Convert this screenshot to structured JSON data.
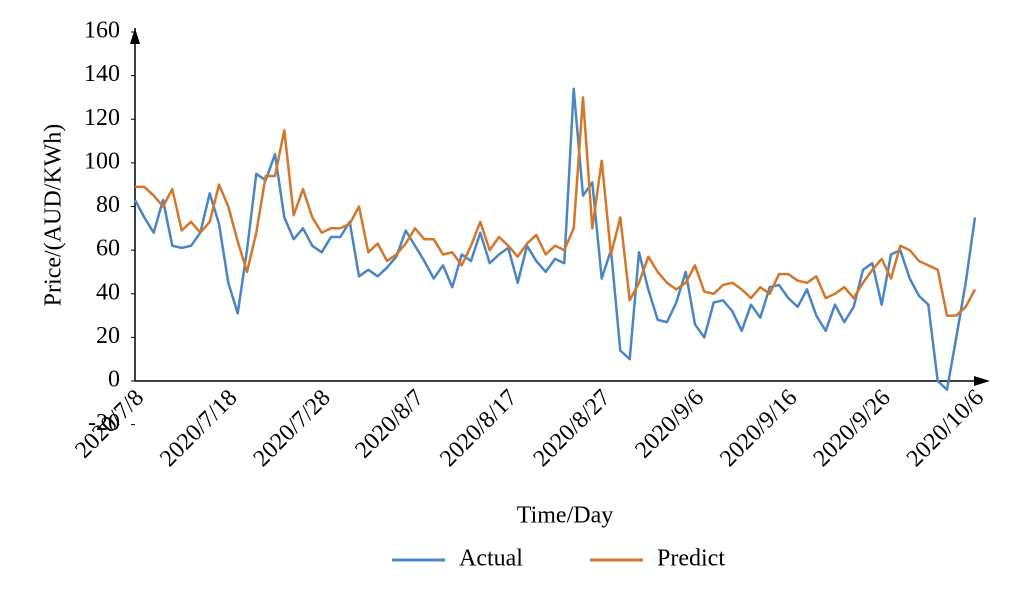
{
  "chart_data": {
    "type": "line",
    "x_label": "Time/Day",
    "y_label": "Price/(AUD/KWh)",
    "categories": [
      "2020/7/8",
      null,
      null,
      null,
      null,
      null,
      null,
      null,
      null,
      null,
      "2020/7/18",
      null,
      null,
      null,
      null,
      null,
      null,
      null,
      null,
      null,
      "2020/7/28",
      null,
      null,
      null,
      null,
      null,
      null,
      null,
      null,
      null,
      "2020/8/7",
      null,
      null,
      null,
      null,
      null,
      null,
      null,
      null,
      null,
      "2020/8/17",
      null,
      null,
      null,
      null,
      null,
      null,
      null,
      null,
      null,
      "2020/8/27",
      null,
      null,
      null,
      null,
      null,
      null,
      null,
      null,
      null,
      "2020/9/6",
      null,
      null,
      null,
      null,
      null,
      null,
      null,
      null,
      null,
      "2020/9/16",
      null,
      null,
      null,
      null,
      null,
      null,
      null,
      null,
      null,
      "2020/9/26",
      null,
      null,
      null,
      null,
      null,
      null,
      null,
      null,
      null,
      "2020/10/6"
    ],
    "series": [
      {
        "name": "Actual",
        "color": "#4a86c5",
        "values": [
          83,
          75,
          68,
          83,
          62,
          61,
          62,
          68,
          86,
          72,
          45,
          31,
          60,
          95,
          92,
          104,
          75,
          65,
          70,
          62,
          59,
          66,
          66,
          73,
          48,
          51,
          48,
          52,
          57,
          69,
          62,
          55,
          47,
          53,
          43,
          58,
          55,
          68,
          54,
          58,
          61,
          45,
          62,
          55,
          50,
          56,
          54,
          134,
          85,
          91,
          47,
          60,
          14,
          10,
          59,
          42,
          28,
          27,
          36,
          50,
          26,
          20,
          36,
          37,
          32,
          23,
          35,
          29,
          43,
          44,
          38,
          34,
          42,
          30,
          23,
          35,
          27,
          34,
          51,
          54,
          35,
          58,
          60,
          47,
          39,
          35,
          0,
          -4,
          20,
          45,
          75
        ]
      },
      {
        "name": "Predict",
        "color": "#d4772a",
        "values": [
          89,
          89,
          85,
          80,
          88,
          69,
          73,
          68,
          73,
          90,
          80,
          64,
          50,
          68,
          94,
          94,
          115,
          76,
          88,
          75,
          68,
          70,
          70,
          72,
          80,
          59,
          63,
          55,
          58,
          63,
          70,
          65,
          65,
          58,
          59,
          53,
          62,
          73,
          60,
          66,
          62,
          57,
          63,
          67,
          58,
          62,
          60,
          70,
          130,
          70,
          101,
          58,
          75,
          37,
          45,
          57,
          50,
          45,
          42,
          45,
          53,
          41,
          40,
          44,
          45,
          42,
          38,
          43,
          40,
          49,
          49,
          46,
          45,
          48,
          38,
          40,
          43,
          38,
          45,
          51,
          56,
          47,
          62,
          60,
          55,
          53,
          51,
          30,
          30,
          34,
          42
        ]
      }
    ],
    "ylim": [
      -20,
      160
    ],
    "yticks": [
      -20,
      0,
      20,
      40,
      60,
      80,
      100,
      120,
      140,
      160
    ],
    "grid": false,
    "legend": "bottom"
  }
}
